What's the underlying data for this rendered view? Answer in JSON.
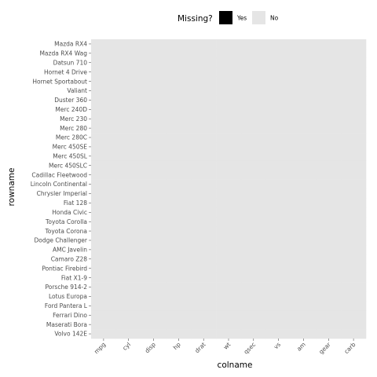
{
  "chart_data": {
    "type": "heatmap",
    "xlabel": "colname",
    "ylabel": "rowname",
    "columns": [
      "mpg",
      "cyl",
      "disp",
      "hp",
      "drat",
      "wt",
      "qsec",
      "vs",
      "am",
      "gear",
      "carb"
    ],
    "rows": [
      "Mazda RX4",
      "Mazda RX4 Wag",
      "Datsun 710",
      "Hornet 4 Drive",
      "Hornet Sportabout",
      "Valiant",
      "Duster 360",
      "Merc 240D",
      "Merc 230",
      "Merc 280",
      "Merc 280C",
      "Merc 450SE",
      "Merc 450SL",
      "Merc 450SLC",
      "Cadillac Fleetwood",
      "Lincoln Continental",
      "Chrysler Imperial",
      "Fiat 128",
      "Honda Civic",
      "Toyota Corolla",
      "Toyota Corona",
      "Dodge Challenger",
      "AMC Javelin",
      "Camaro Z28",
      "Pontiac Firebird",
      "Fiat X1-9",
      "Porsche 914-2",
      "Lotus Europa",
      "Ford Pantera L",
      "Ferrari Dino",
      "Maserati Bora",
      "Volvo 142E"
    ],
    "missing_cells": [],
    "legend": {
      "title": "Missing?",
      "position": "top",
      "items": [
        {
          "label": "Yes",
          "color": "#000000"
        },
        {
          "label": "No",
          "color": "#e5e5e5"
        }
      ]
    },
    "colors": {
      "missing": "#000000",
      "present": "#e5e5e5",
      "tick": "#4d4d4d"
    }
  }
}
